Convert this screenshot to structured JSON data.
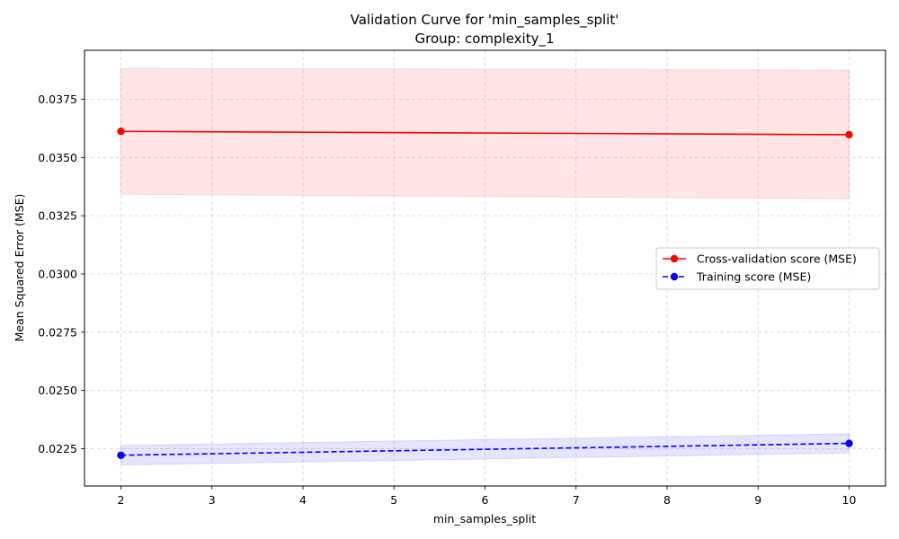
{
  "chart_data": {
    "type": "line",
    "title": "Validation Curve for 'min_samples_split'",
    "subtitle": "Group: complexity_1",
    "xlabel": "min_samples_split",
    "ylabel": "Mean Squared Error (MSE)",
    "x": [
      2,
      10
    ],
    "xlim": [
      1.6,
      10.4
    ],
    "ylim": [
      0.0209,
      0.0396
    ],
    "xticks": [
      2,
      3,
      4,
      5,
      6,
      7,
      8,
      9,
      10
    ],
    "yticks": [
      0.0225,
      0.025,
      0.0275,
      0.03,
      0.0325,
      0.035,
      0.0375
    ],
    "ytick_labels": [
      "0.0225",
      "0.0250",
      "0.0275",
      "0.0300",
      "0.0325",
      "0.0350",
      "0.0375"
    ],
    "grid": true,
    "legend_position": "center-right",
    "series": [
      {
        "name": "Cross-validation score (MSE)",
        "color": "#ff0000",
        "band_color": "#ff0000",
        "line_style": "solid",
        "marker": "circle",
        "values": [
          0.03612,
          0.03598
        ],
        "band_upper": [
          0.03883,
          0.03875
        ],
        "band_lower": [
          0.03342,
          0.03323
        ]
      },
      {
        "name": "Training score (MSE)",
        "color": "#0000ff",
        "band_color": "#0000ff",
        "line_style": "dashed",
        "marker": "circle",
        "values": [
          0.02222,
          0.02273
        ],
        "band_upper": [
          0.02264,
          0.02314
        ],
        "band_lower": [
          0.0218,
          0.02232
        ]
      }
    ]
  }
}
